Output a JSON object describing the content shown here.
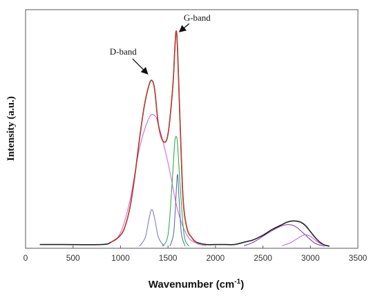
{
  "chart_data": {
    "type": "line",
    "title": "",
    "xlabel": "Wavenumber (cm",
    "xlabel_sup": "-1",
    "xlabel_tail": ")",
    "ylabel": "Intensity (a.u.)",
    "xlim": [
      0,
      3500
    ],
    "ylim": [
      0,
      1.0
    ],
    "x_ticks": [
      0,
      500,
      1000,
      1500,
      2000,
      2500,
      3000,
      3500
    ],
    "y_ticks_shown": false,
    "grid": false,
    "legend": "none",
    "annotations": [
      {
        "text": "D-band",
        "target_x": 1330,
        "target_y": 0.72
      },
      {
        "text": "G-band",
        "target_x": 1585,
        "target_y": 0.92
      }
    ],
    "series": [
      {
        "role": "measured-spectrum",
        "color": "#222222",
        "x": [
          150,
          400,
          800,
          900,
          1000,
          1050,
          1100,
          1150,
          1200,
          1250,
          1300,
          1330,
          1360,
          1400,
          1450,
          1500,
          1550,
          1570,
          1585,
          1600,
          1630,
          1660,
          1700,
          1750,
          1800,
          1900,
          2000,
          2100,
          2200,
          2300,
          2400,
          2500,
          2600,
          2700,
          2750,
          2800,
          2850,
          2900,
          2950,
          3000,
          3050,
          3100,
          3150,
          3200
        ],
        "y": [
          0.01,
          0.01,
          0.01,
          0.02,
          0.05,
          0.09,
          0.17,
          0.3,
          0.46,
          0.6,
          0.69,
          0.71,
          0.67,
          0.52,
          0.45,
          0.48,
          0.68,
          0.83,
          0.92,
          0.85,
          0.5,
          0.2,
          0.08,
          0.04,
          0.02,
          0.01,
          0.01,
          0.01,
          0.01,
          0.02,
          0.03,
          0.05,
          0.075,
          0.095,
          0.105,
          0.11,
          0.11,
          0.105,
          0.09,
          0.065,
          0.04,
          0.02,
          0.008,
          0.003
        ]
      },
      {
        "role": "fitted-envelope",
        "color": "#e0392b",
        "x": [
          900,
          1000,
          1050,
          1100,
          1150,
          1200,
          1250,
          1300,
          1330,
          1360,
          1400,
          1450,
          1500,
          1550,
          1570,
          1585,
          1600,
          1630,
          1660,
          1700,
          1750,
          1800
        ],
        "y": [
          0.02,
          0.05,
          0.09,
          0.17,
          0.3,
          0.46,
          0.6,
          0.69,
          0.71,
          0.67,
          0.52,
          0.45,
          0.48,
          0.68,
          0.83,
          0.92,
          0.85,
          0.5,
          0.2,
          0.08,
          0.04,
          0.02
        ]
      },
      {
        "role": "component-D-broad",
        "color": "#d46ad0",
        "x": [
          900,
          1000,
          1100,
          1200,
          1300,
          1360,
          1400,
          1500,
          1600,
          1700,
          1800,
          1900
        ],
        "y": [
          0.02,
          0.06,
          0.2,
          0.42,
          0.55,
          0.56,
          0.52,
          0.36,
          0.16,
          0.05,
          0.015,
          0.005
        ]
      },
      {
        "role": "component-D-narrow",
        "color": "#7b7fc4",
        "x": [
          1200,
          1260,
          1300,
          1330,
          1360,
          1400,
          1460
        ],
        "y": [
          0.003,
          0.04,
          0.12,
          0.16,
          0.12,
          0.04,
          0.003
        ]
      },
      {
        "role": "component-G-main",
        "color": "#2fae4a",
        "x": [
          1440,
          1500,
          1540,
          1570,
          1585,
          1600,
          1630,
          1670,
          1720
        ],
        "y": [
          0.003,
          0.05,
          0.25,
          0.44,
          0.47,
          0.44,
          0.25,
          0.05,
          0.003
        ]
      },
      {
        "role": "component-G-narrow",
        "color": "#5b6fb0",
        "x": [
          1520,
          1560,
          1585,
          1600,
          1615,
          1640,
          1680
        ],
        "y": [
          0.003,
          0.06,
          0.22,
          0.31,
          0.22,
          0.06,
          0.003
        ]
      },
      {
        "role": "component-2D-main",
        "color": "#8a3fb0",
        "x": [
          2300,
          2400,
          2500,
          2600,
          2700,
          2780,
          2850,
          2950,
          3050,
          3150
        ],
        "y": [
          0.005,
          0.02,
          0.045,
          0.07,
          0.09,
          0.095,
          0.085,
          0.05,
          0.015,
          0.003
        ]
      },
      {
        "role": "component-2D-shoulder",
        "color": "#c06ac8",
        "x": [
          2700,
          2800,
          2900,
          2950,
          3000,
          3100,
          3200
        ],
        "y": [
          0.005,
          0.02,
          0.045,
          0.052,
          0.045,
          0.015,
          0.003
        ]
      }
    ]
  }
}
